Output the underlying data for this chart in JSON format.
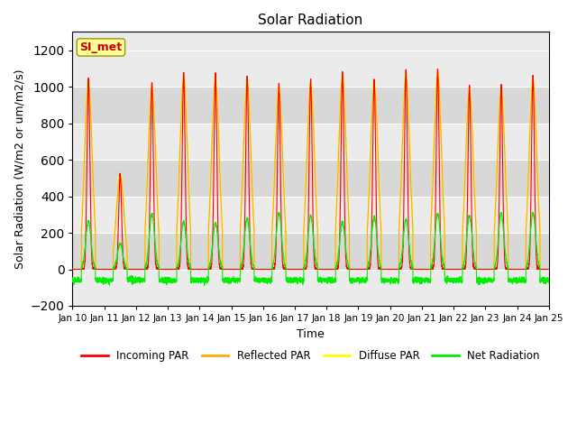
{
  "title": "Solar Radiation",
  "ylabel": "Solar Radiation (W/m2 or um/m2/s)",
  "xlabel": "Time",
  "ylim": [
    -200,
    1300
  ],
  "yticks": [
    -200,
    0,
    200,
    400,
    600,
    800,
    1000,
    1200
  ],
  "num_days": 15,
  "pts_per_day": 288,
  "x_tick_labels": [
    "Jan 10",
    "Jan 11",
    "Jan 12",
    "Jan 13",
    "Jan 14",
    "Jan 15",
    "Jan 16",
    "Jan 17",
    "Jan 18",
    "Jan 19",
    "Jan 20",
    "Jan 21",
    "Jan 22",
    "Jan 23",
    "Jan 24",
    "Jan 25"
  ],
  "legend_labels": [
    "Incoming PAR",
    "Reflected PAR",
    "Diffuse PAR",
    "Net Radiation"
  ],
  "legend_colors": [
    "#ff0000",
    "#ffaa00",
    "#ffff00",
    "#00ee00"
  ],
  "annotation_text": "SI_met",
  "annotation_color": "#cc0000",
  "annotation_bg": "#ffff99",
  "background_color": "#ffffff",
  "plot_bg_light": "#ebebeb",
  "plot_bg_dark": "#d8d8d8",
  "grid_color": "#ffffff"
}
